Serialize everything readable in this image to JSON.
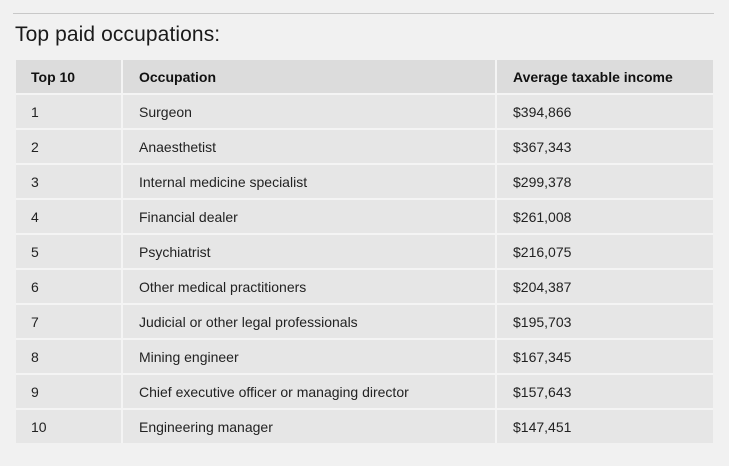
{
  "heading": "Top paid occupations:",
  "table": {
    "headers": {
      "rank": "Top 10",
      "occupation": "Occupation",
      "income": "Average taxable income"
    },
    "rows": [
      {
        "rank": "1",
        "occupation": "Surgeon",
        "income": "$394,866"
      },
      {
        "rank": "2",
        "occupation": "Anaesthetist",
        "income": "$367,343"
      },
      {
        "rank": "3",
        "occupation": "Internal medicine specialist",
        "income": "$299,378"
      },
      {
        "rank": "4",
        "occupation": "Financial dealer",
        "income": "$261,008"
      },
      {
        "rank": "5",
        "occupation": "Psychiatrist",
        "income": "$216,075"
      },
      {
        "rank": "6",
        "occupation": "Other medical practitioners",
        "income": "$204,387"
      },
      {
        "rank": "7",
        "occupation": "Judicial or other legal professionals",
        "income": "$195,703"
      },
      {
        "rank": "8",
        "occupation": "Mining engineer",
        "income": "$167,345"
      },
      {
        "rank": "9",
        "occupation": "Chief executive officer or managing director",
        "income": "$157,643"
      },
      {
        "rank": "10",
        "occupation": "Engineering manager",
        "income": "$147,451"
      }
    ]
  }
}
